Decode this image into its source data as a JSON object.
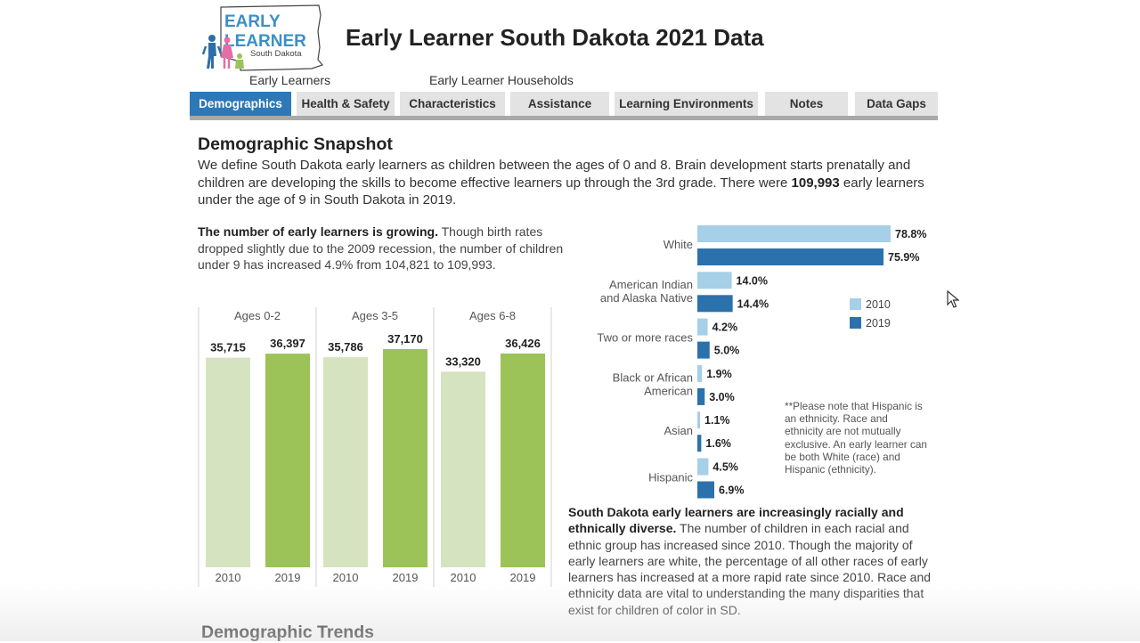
{
  "header": {
    "logo_text": [
      "EARLY",
      "LEARNER",
      "South Dakota"
    ],
    "title": "Early Learner South Dakota 2021 Data",
    "links": [
      "Early Learners",
      "Early Learner Households"
    ]
  },
  "tabs": [
    {
      "label": "Demographics",
      "active": true
    },
    {
      "label": "Health & Safety",
      "active": false
    },
    {
      "label": "Characteristics",
      "active": false
    },
    {
      "label": "Assistance",
      "active": false
    },
    {
      "label": "Learning Environments",
      "active": false
    },
    {
      "label": "Notes",
      "active": false
    },
    {
      "label": "Data Gaps",
      "active": false
    }
  ],
  "snapshot": {
    "title": "Demographic Snapshot",
    "intro_pre": "We define South Dakota early learners as children between the ages of 0 and 8. Brain development starts prenatally and children are developing the skills to become effective learners up through the 3rd grade. There were ",
    "intro_bold": "109,993",
    "intro_post": " early learners under the age of 9 in South Dakota in 2019."
  },
  "growth": {
    "bold": "The number of early learners is growing.",
    "text": " Though birth rates dropped slightly due to the 2009 recession, the number of children under 9 has increased 4.9% from 104,821 to 109,993."
  },
  "diversity": {
    "bold": "South Dakota early learners are increasingly racially and ethnically diverse.",
    "text": " The number of children in each racial and ethnic group has increased since 2010. Though the majority of early learners are white, the percentage of all other races of early learners has increased at a more rapid rate since 2010. Race and ethnicity data are vital to understanding the many disparities that exist for children of color in SD."
  },
  "hispanic_note": "**Please note that Hispanic is an ethnicity. Race and ethnicity are not mutually exclusive. An early learner can be both White (race) and Hispanic (ethnicity).",
  "trends_title": "Demographic Trends",
  "chart_data": [
    {
      "type": "bar",
      "panels": [
        "Ages 0-2",
        "Ages 3-5",
        "Ages 6-8"
      ],
      "categories": [
        "2010",
        "2019"
      ],
      "series": [
        {
          "values": [
            35715,
            36397
          ]
        },
        {
          "values": [
            35786,
            37170
          ]
        },
        {
          "values": [
            33320,
            36426
          ]
        }
      ],
      "value_labels": [
        [
          "35,715",
          "36,397"
        ],
        [
          "35,786",
          "37,170"
        ],
        [
          "33,320",
          "36,426"
        ]
      ],
      "colors": {
        "2010": "#d6e3c0",
        "2019": "#9cc357"
      },
      "ylim": [
        0,
        37170
      ],
      "grid": false
    },
    {
      "type": "bar",
      "orientation": "horizontal",
      "categories": [
        "White",
        "American Indian and Alaska Native",
        "Two or more races",
        "Black or African American",
        "Asian",
        "Hispanic"
      ],
      "category_lines": [
        [
          "White"
        ],
        [
          "American Indian",
          "and Alaska Native"
        ],
        [
          "Two or more races"
        ],
        [
          "Black or African",
          "American"
        ],
        [
          "Asian"
        ],
        [
          "Hispanic"
        ]
      ],
      "series": [
        {
          "name": "2010",
          "values": [
            78.8,
            14.0,
            4.2,
            1.9,
            1.1,
            4.5
          ],
          "color": "#a6cfe8"
        },
        {
          "name": "2019",
          "values": [
            75.9,
            14.4,
            5.0,
            3.0,
            1.6,
            6.9
          ],
          "color": "#2b72ad"
        }
      ],
      "unit": "%",
      "xlim": [
        0,
        78.8
      ],
      "legend": "right",
      "grid": false
    }
  ]
}
